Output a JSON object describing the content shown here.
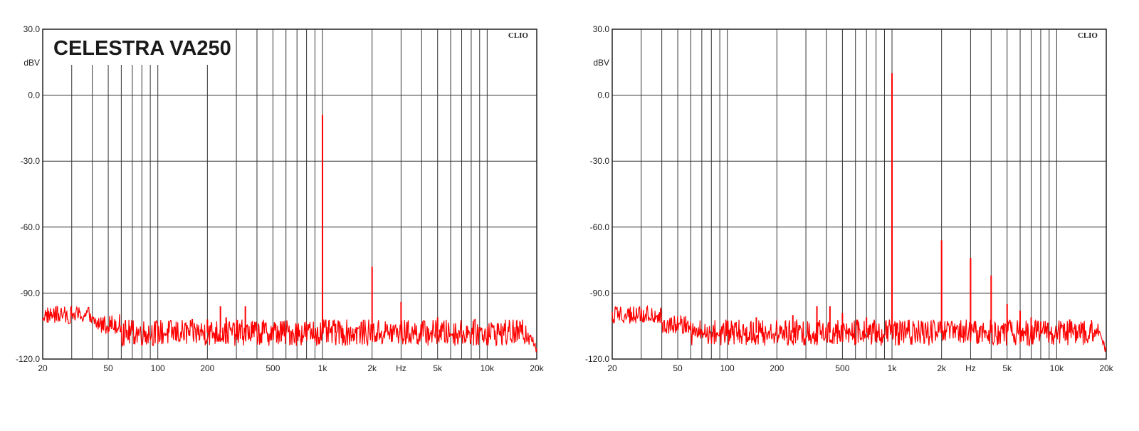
{
  "chart_data": [
    {
      "type": "line",
      "title": "CELESTRA VA250",
      "brand": "CLIO",
      "xlabel": "Hz",
      "ylabel": "dBV",
      "x_scale": "log",
      "xlim": [
        20,
        20000
      ],
      "ylim": [
        -120,
        30
      ],
      "grid": true,
      "x_ticks": [
        20,
        50,
        100,
        200,
        500,
        1000,
        2000,
        5000,
        10000,
        20000
      ],
      "x_tick_labels": [
        "20",
        "50",
        "100",
        "200",
        "500",
        "1k",
        "2k",
        "5k",
        "10k",
        "20k"
      ],
      "y_ticks": [
        30,
        0,
        -30,
        -60,
        -90,
        -120
      ],
      "y_tick_labels": [
        "30.0",
        "0.0",
        "-30.0",
        "-60.0",
        "-90.0",
        "-120.0"
      ],
      "noise_floor_dbv": -108,
      "series": [
        {
          "peaks": [
            [
              1000,
              -9
            ],
            [
              2000,
              -78
            ],
            [
              3000,
              -94
            ],
            [
              5000,
              -101
            ],
            [
              240,
              -96
            ],
            [
              340,
              -96
            ],
            [
              260,
              -101
            ],
            [
              200,
              -102
            ],
            [
              1200,
              -104
            ]
          ]
        }
      ],
      "color": "#ff0000"
    },
    {
      "type": "line",
      "title": "",
      "brand": "CLIO",
      "xlabel": "Hz",
      "ylabel": "dBV",
      "x_scale": "log",
      "xlim": [
        20,
        20000
      ],
      "ylim": [
        -120,
        30
      ],
      "grid": true,
      "x_ticks": [
        20,
        50,
        100,
        200,
        500,
        1000,
        2000,
        5000,
        10000,
        20000
      ],
      "x_tick_labels": [
        "20",
        "50",
        "100",
        "200",
        "500",
        "1k",
        "2k",
        "5k",
        "10k",
        "20k"
      ],
      "y_ticks": [
        30,
        0,
        -30,
        -60,
        -90,
        -120
      ],
      "y_tick_labels": [
        "30.0",
        "0.0",
        "-30.0",
        "-60.0",
        "-90.0",
        "-120.0"
      ],
      "noise_floor_dbv": -108,
      "series": [
        {
          "peaks": [
            [
              1000,
              10
            ],
            [
              2000,
              -66
            ],
            [
              3000,
              -74
            ],
            [
              4000,
              -82
            ],
            [
              5000,
              -95
            ],
            [
              6000,
              -98
            ],
            [
              7000,
              -101
            ],
            [
              8000,
              -103
            ],
            [
              12000,
              -102
            ],
            [
              350,
              -96
            ],
            [
              420,
              -96
            ],
            [
              500,
              -99
            ],
            [
              150,
              -101
            ],
            [
              250,
              -100
            ],
            [
              700,
              -101
            ]
          ]
        }
      ],
      "color": "#ff0000"
    }
  ]
}
